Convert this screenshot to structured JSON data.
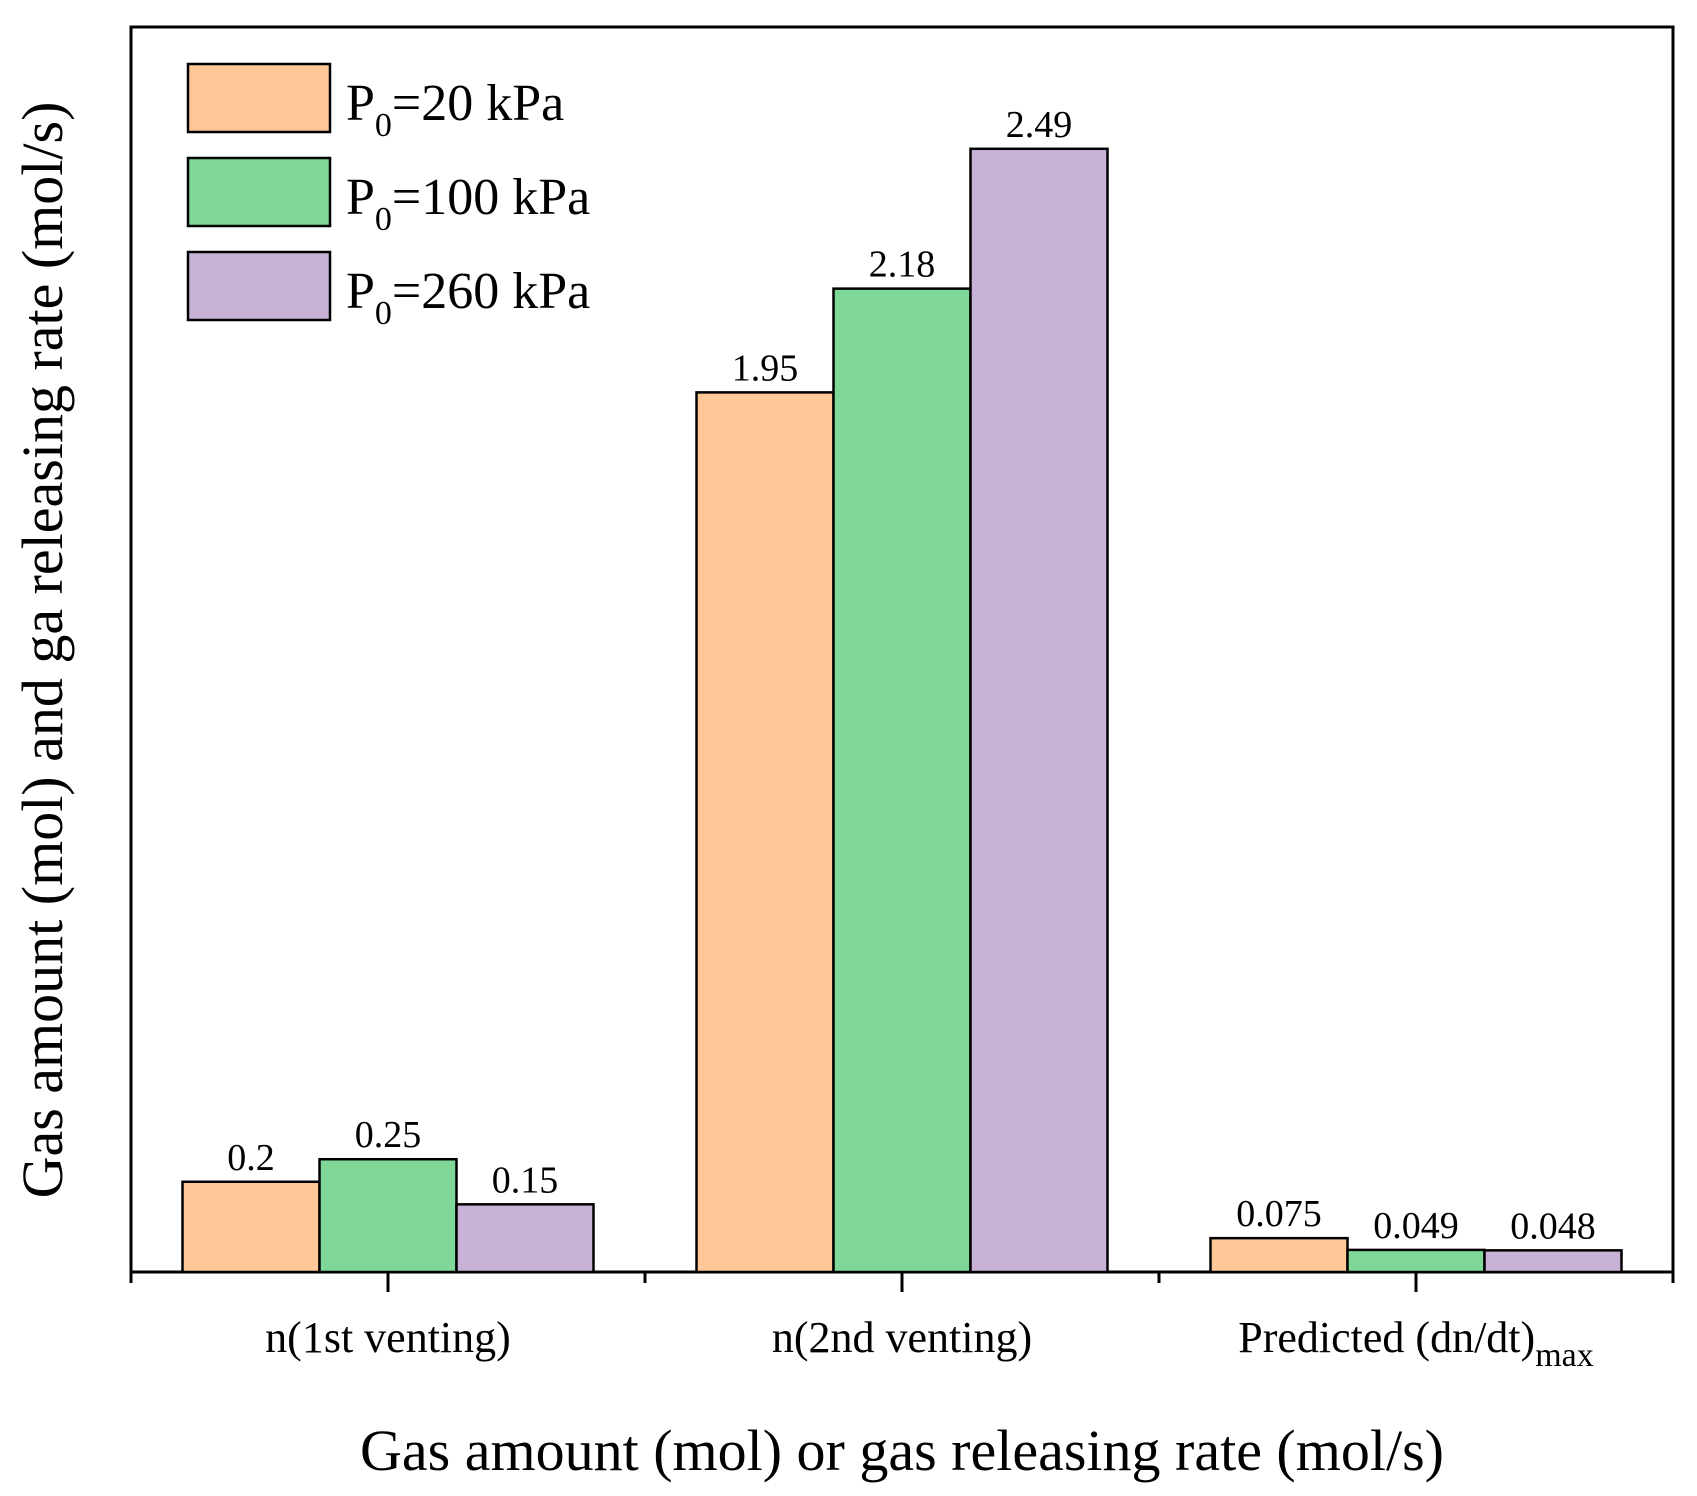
{
  "chart_data": {
    "type": "bar",
    "title": "",
    "xlabel": "Gas amount (mol) or gas releasing rate (mol/s)",
    "ylabel": "Gas amount (mol) and ga releasing rate (mol/s)",
    "categories": [
      {
        "main": "n(1st venting)",
        "sub": ""
      },
      {
        "main": "n(2nd venting)",
        "sub": ""
      },
      {
        "main": "Predicted (dn/dt)",
        "sub": "max"
      }
    ],
    "series": [
      {
        "name": "P0=20 kPa",
        "legend_prefix": "P",
        "legend_sub": "0",
        "legend_suffix": "=20 kPa",
        "color": "#FFC896",
        "values": [
          0.2,
          1.95,
          0.075
        ],
        "labels": [
          "0.2",
          "1.95",
          "0.075"
        ]
      },
      {
        "name": "P0=100 kPa",
        "legend_prefix": "P",
        "legend_sub": "0",
        "legend_suffix": "=100 kPa",
        "color": "#80D898",
        "values": [
          0.25,
          2.18,
          0.049
        ],
        "labels": [
          "0.25",
          "2.18",
          "0.049"
        ]
      },
      {
        "name": "P0=260 kPa",
        "legend_prefix": "P",
        "legend_sub": "0",
        "legend_suffix": "=260 kPa",
        "color": "#C8B2D8",
        "values": [
          0.15,
          2.49,
          0.048
        ],
        "labels": [
          "0.15",
          "2.49",
          "0.048"
        ]
      }
    ],
    "ylim": [
      0,
      2.76
    ],
    "grid": false,
    "legend_position": "top-left"
  }
}
